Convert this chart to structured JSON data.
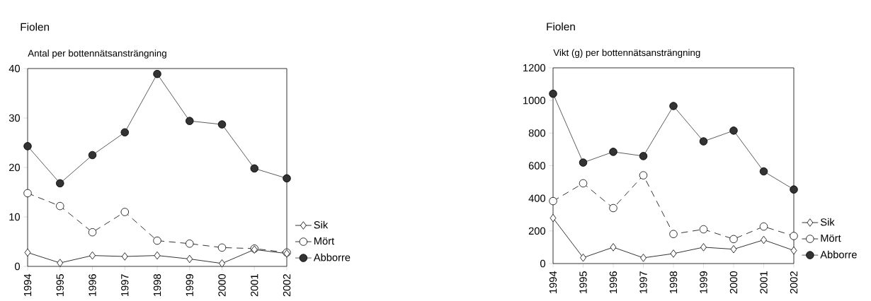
{
  "chart_data": [
    {
      "type": "line",
      "title": "Fiolen",
      "subtitle": "Antal per bottennätsansträngning",
      "categories": [
        "1994",
        "1995",
        "1996",
        "1997",
        "1998",
        "1999",
        "2000",
        "2001",
        "2002"
      ],
      "ylim": [
        0,
        40
      ],
      "yticks": [
        0,
        10,
        20,
        30,
        40
      ],
      "grid": false,
      "legend": "bottom right",
      "series": [
        {
          "name": "Sik",
          "color": "#000000",
          "marker": "diamond",
          "line_style": "solid",
          "values": [
            2.8,
            0.7,
            2.2,
            2.0,
            2.2,
            1.5,
            0.6,
            3.4,
            2.6
          ]
        },
        {
          "name": "Mört",
          "color": "#000000",
          "marker": "circle",
          "line_style": "dashed",
          "values": [
            14.8,
            12.2,
            6.9,
            11.0,
            5.2,
            4.6,
            3.8,
            3.6,
            2.8
          ]
        },
        {
          "name": "Abborre",
          "color": "#333333",
          "marker": "circle",
          "line_style": "solid",
          "values": [
            24.3,
            16.8,
            22.5,
            27.1,
            38.9,
            29.4,
            28.7,
            19.8,
            17.8
          ]
        }
      ]
    },
    {
      "type": "line",
      "title": "Fiolen",
      "subtitle": "Vikt (g) per bottennätsansträngning",
      "categories": [
        "1994",
        "1995",
        "1996",
        "1997",
        "1998",
        "1999",
        "2000",
        "2001",
        "2002"
      ],
      "ylim": [
        0,
        1200
      ],
      "yticks": [
        0,
        200,
        400,
        600,
        800,
        1000,
        1200
      ],
      "grid": false,
      "legend": "bottom right",
      "series": [
        {
          "name": "Sik",
          "color": "#000000",
          "marker": "diamond",
          "line_style": "solid",
          "values": [
            279,
            36,
            100,
            35,
            61,
            100,
            88,
            145,
            80
          ]
        },
        {
          "name": "Mört",
          "color": "#000000",
          "marker": "circle",
          "line_style": "dashed",
          "values": [
            383,
            492,
            340,
            541,
            181,
            210,
            150,
            227,
            169
          ]
        },
        {
          "name": "Abborre",
          "color": "#333333",
          "marker": "circle",
          "line_style": "solid",
          "values": [
            1041,
            619,
            685,
            659,
            966,
            749,
            815,
            565,
            454
          ]
        }
      ]
    }
  ]
}
